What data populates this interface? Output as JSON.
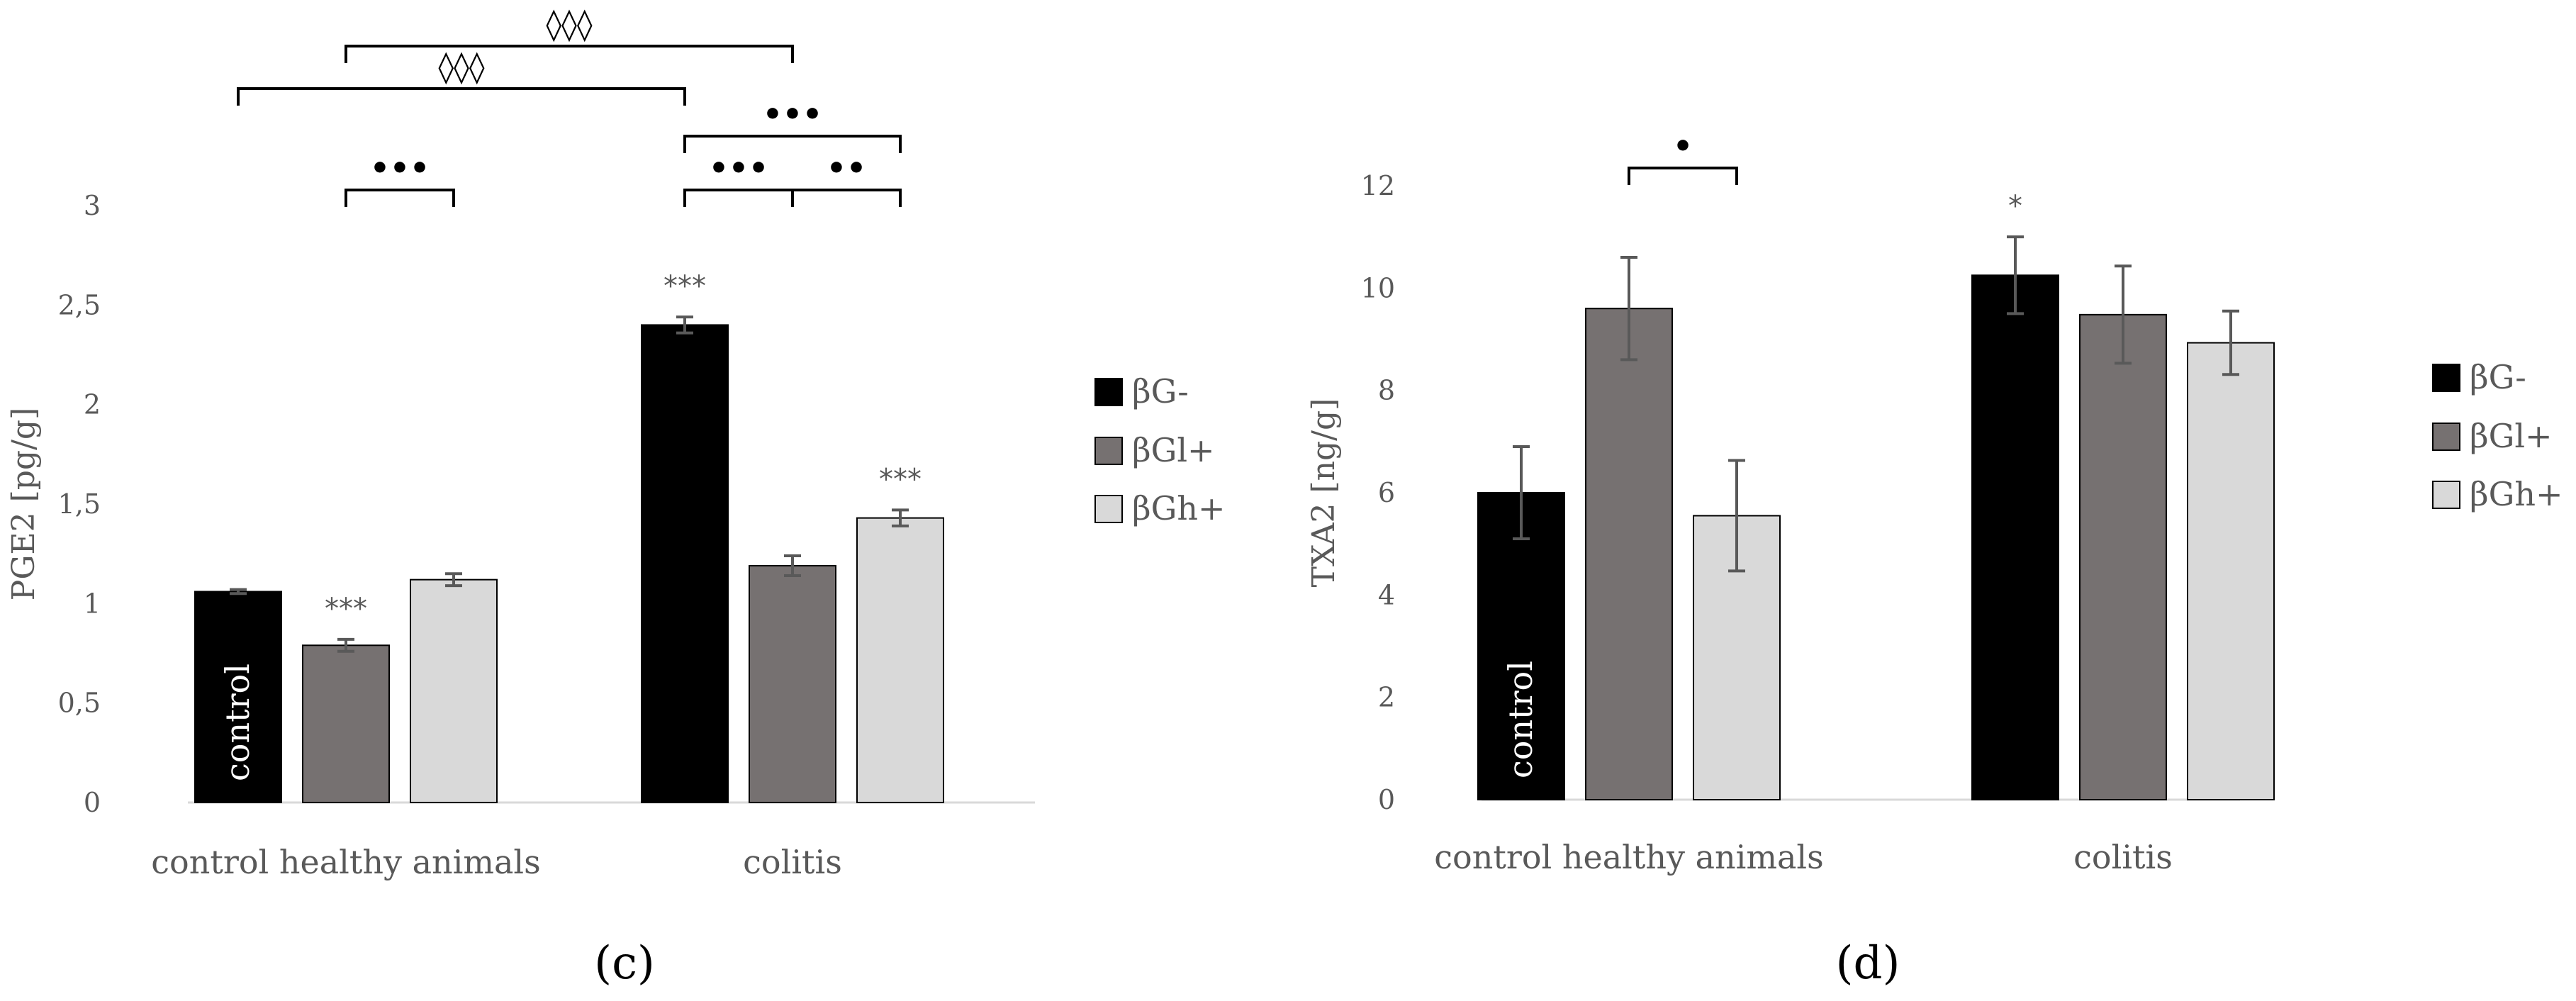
{
  "chart_data": [
    {
      "type": "bar",
      "panel_label": "(c)",
      "title": "",
      "xlabel": "",
      "ylabel": "PGE2 [pg/g]",
      "ylim": [
        0,
        3
      ],
      "yticks": [
        "0",
        "0,5",
        "1",
        "1,5",
        "2",
        "2,5",
        "3"
      ],
      "categories": [
        "control healthy animals",
        "colitis"
      ],
      "legend_position": "right",
      "series": [
        {
          "name": "βG-",
          "color": "#000000",
          "values": [
            1.06,
            2.4
          ],
          "errors": [
            0.01,
            0.04
          ]
        },
        {
          "name": "βGl+",
          "color": "#767171",
          "values": [
            0.79,
            1.19
          ],
          "errors": [
            0.03,
            0.05
          ]
        },
        {
          "name": "βGh+",
          "color": "#d9d9d9",
          "values": [
            1.12,
            1.43
          ],
          "errors": [
            0.03,
            0.04
          ]
        }
      ],
      "bar_marks": [
        {
          "series": 0,
          "category": 0,
          "mark": "",
          "inside": "control"
        },
        {
          "series": 1,
          "category": 0,
          "mark": "***",
          "inside": ""
        },
        {
          "series": 2,
          "category": 0,
          "mark": "",
          "inside": ""
        },
        {
          "series": 0,
          "category": 1,
          "mark": "***",
          "inside": ""
        },
        {
          "series": 1,
          "category": 1,
          "mark": "",
          "inside": ""
        },
        {
          "series": 2,
          "category": 1,
          "mark": "***",
          "inside": ""
        }
      ],
      "brackets": [
        {
          "from": [
            1,
            0
          ],
          "to": [
            2,
            0
          ],
          "level": 0,
          "symbol": "•••"
        },
        {
          "from": [
            1,
            1
          ],
          "to": [
            2,
            1
          ],
          "level": 0,
          "symbol": "••"
        },
        {
          "from": [
            0,
            1
          ],
          "to": [
            1,
            1
          ],
          "level": 0,
          "symbol": "•••"
        },
        {
          "from": [
            0,
            1
          ],
          "to": [
            2,
            1
          ],
          "level": 1,
          "symbol": "•••"
        },
        {
          "from": [
            0,
            0
          ],
          "to": [
            0,
            1
          ],
          "level": 2,
          "symbol": "◊◊◊"
        },
        {
          "from": [
            1,
            0
          ],
          "to": [
            1,
            1
          ],
          "level": 3,
          "symbol": "◊◊◊"
        }
      ]
    },
    {
      "type": "bar",
      "panel_label": "(d)",
      "title": "",
      "xlabel": "",
      "ylabel": "TXA2 [ng/g]",
      "ylim": [
        0,
        12
      ],
      "yticks": [
        "0",
        "2",
        "4",
        "6",
        "8",
        "10",
        "12"
      ],
      "categories": [
        "control healthy animals",
        "colitis"
      ],
      "legend_position": "right",
      "series": [
        {
          "name": "βG-",
          "color": "#000000",
          "values": [
            6.0,
            10.25
          ],
          "errors": [
            0.9,
            0.75
          ]
        },
        {
          "name": "βGl+",
          "color": "#767171",
          "values": [
            9.6,
            9.48
          ],
          "errors": [
            1.0,
            0.95
          ]
        },
        {
          "name": "βGh+",
          "color": "#d9d9d9",
          "values": [
            5.55,
            8.93
          ],
          "errors": [
            1.08,
            0.62
          ]
        }
      ],
      "bar_marks": [
        {
          "series": 0,
          "category": 0,
          "mark": "",
          "inside": "control"
        },
        {
          "series": 1,
          "category": 0,
          "mark": "",
          "inside": ""
        },
        {
          "series": 2,
          "category": 0,
          "mark": "",
          "inside": ""
        },
        {
          "series": 0,
          "category": 1,
          "mark": "*",
          "inside": ""
        },
        {
          "series": 1,
          "category": 1,
          "mark": "",
          "inside": ""
        },
        {
          "series": 2,
          "category": 1,
          "mark": "",
          "inside": ""
        }
      ],
      "brackets": [
        {
          "from": [
            1,
            0
          ],
          "to": [
            2,
            0
          ],
          "level": 0,
          "symbol": "•"
        }
      ]
    }
  ]
}
